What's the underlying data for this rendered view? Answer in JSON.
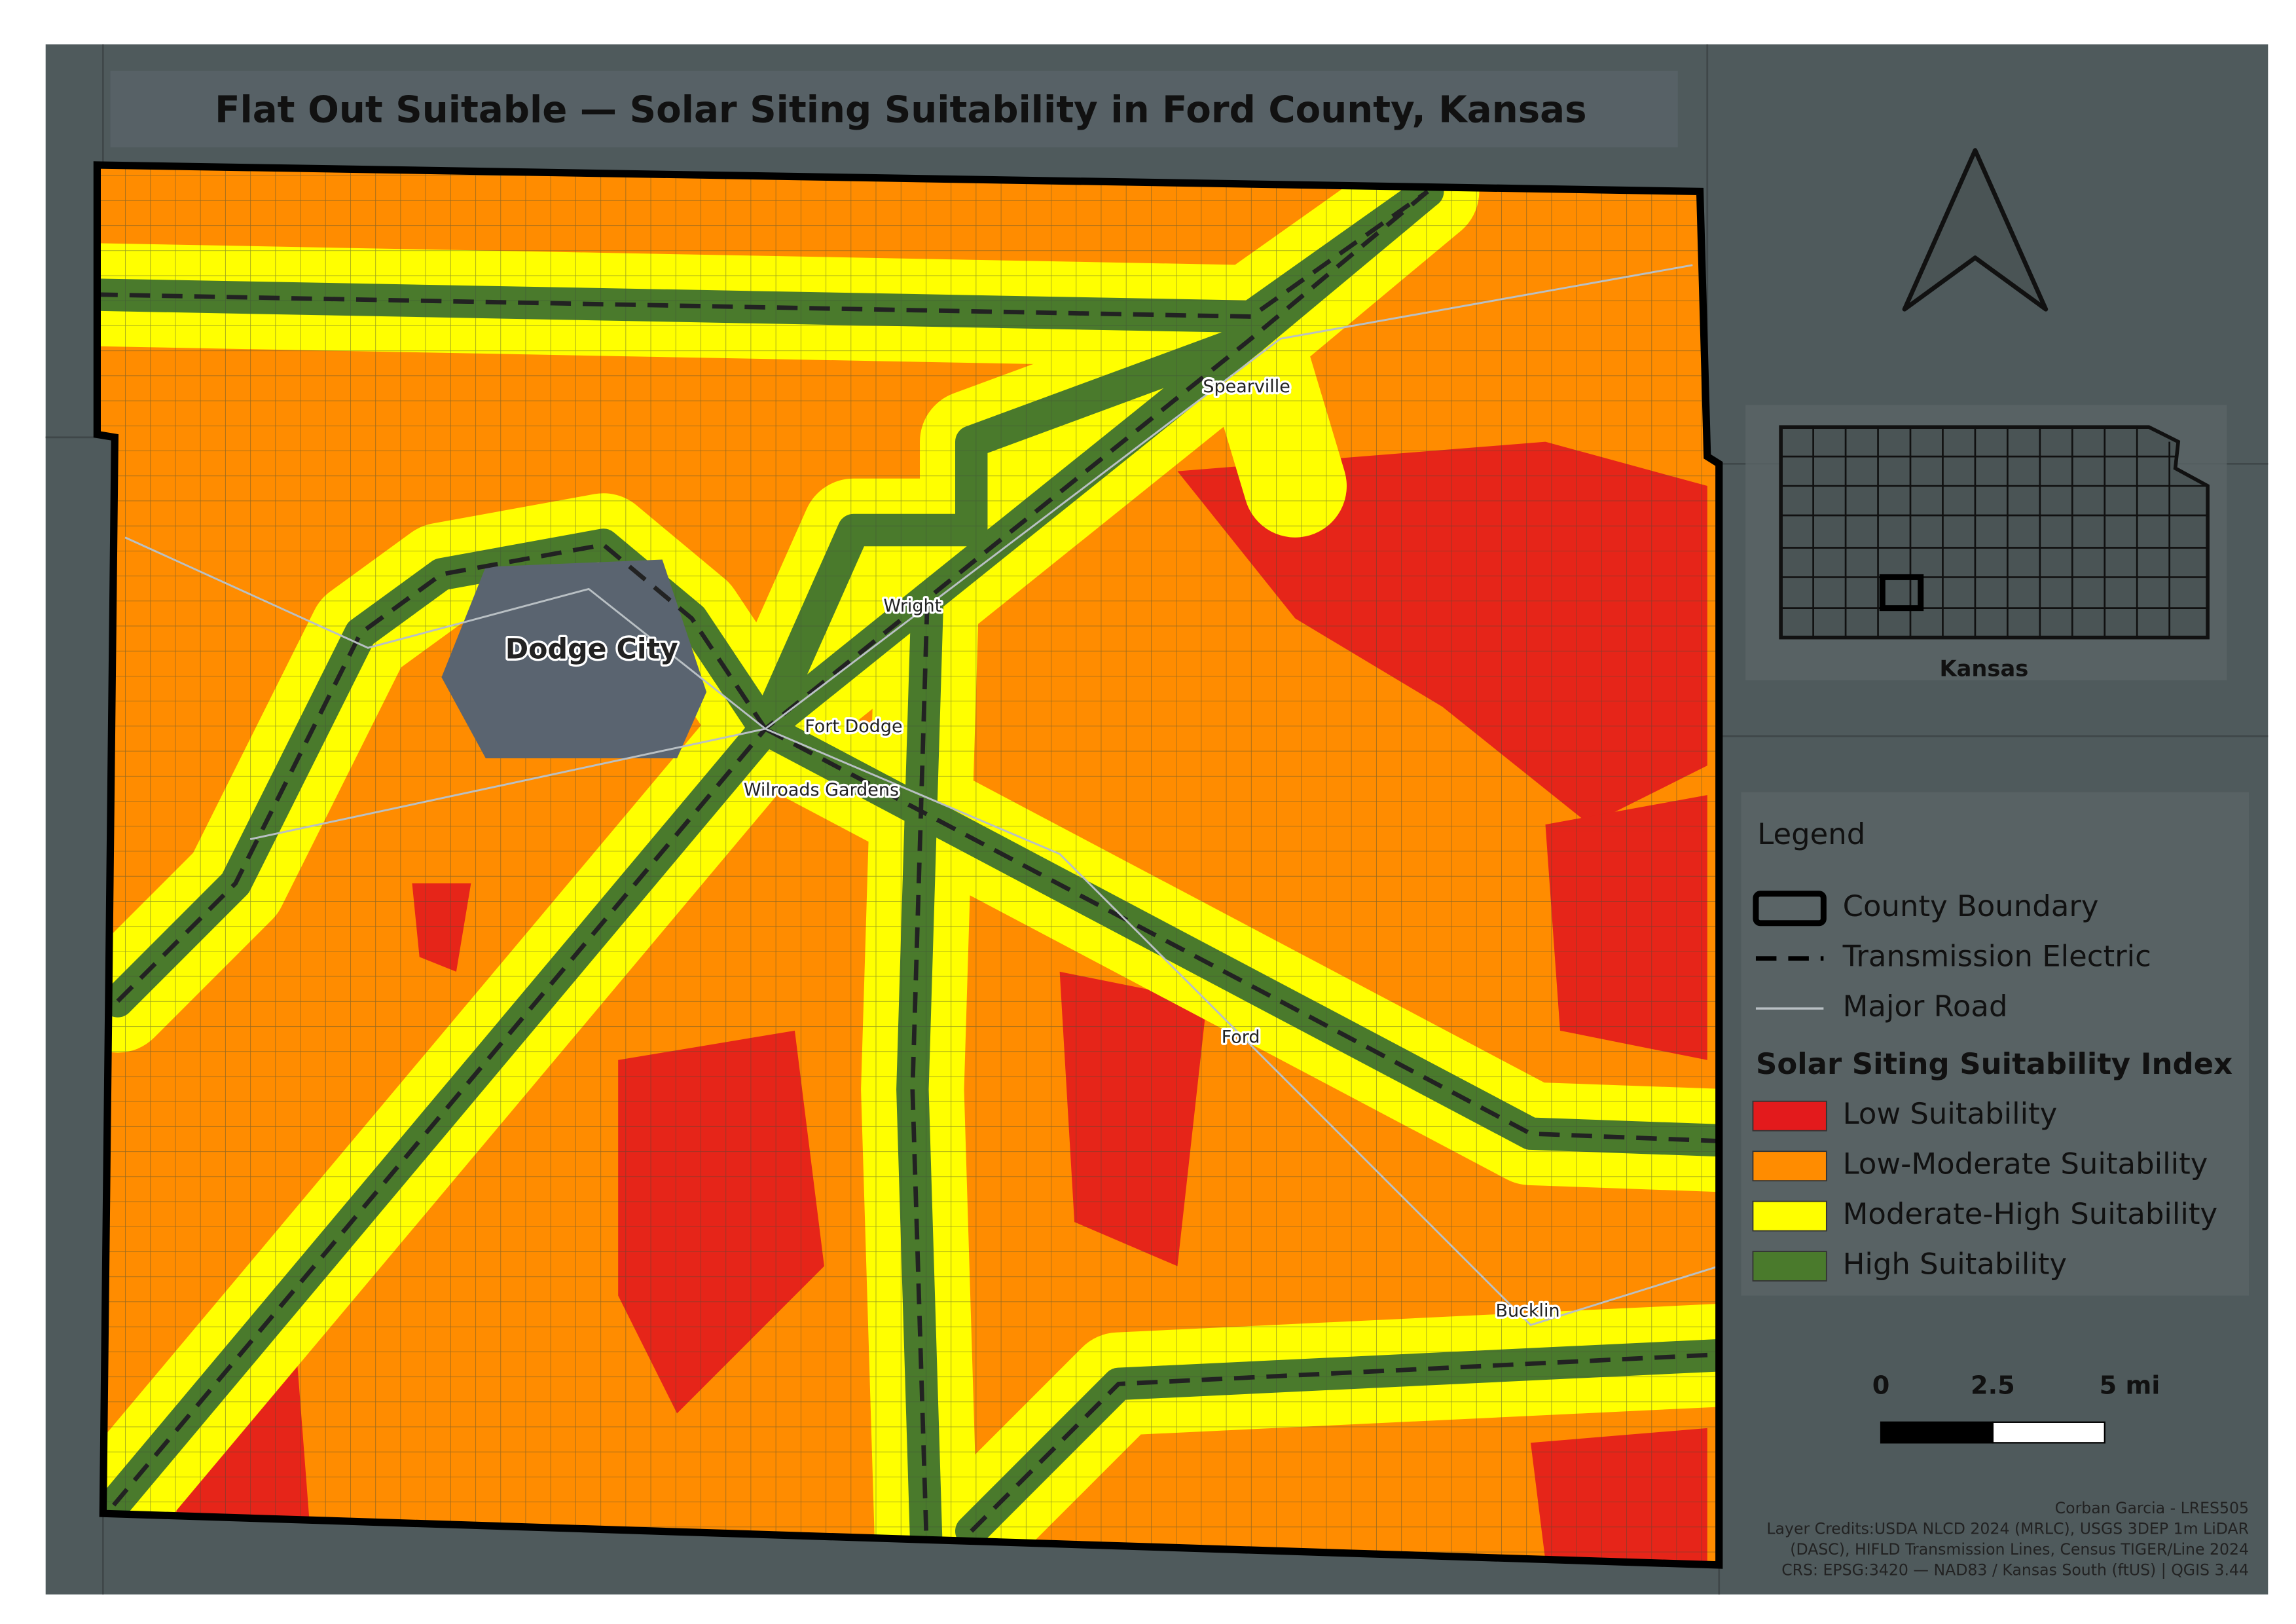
{
  "title": "Flat Out Suitable — Solar Siting Suitability in Ford County, Kansas",
  "places": [
    "Spearville",
    "Wright",
    "Dodge City",
    "Fort Dodge",
    "Wilroads Gardens",
    "Ford",
    "Bucklin"
  ],
  "inset": {
    "label": "Kansas"
  },
  "legend": {
    "title": "Legend",
    "items": [
      "County Boundary",
      "Transmission Electric",
      "Major Road"
    ],
    "index_title": "Solar Siting Suitability Index",
    "classes": [
      {
        "label": "Low Suitability",
        "color": "#e31a1c"
      },
      {
        "label": "Low-Moderate Suitability",
        "color": "#ff8c00"
      },
      {
        "label": "Moderate-High Suitability",
        "color": "#ffff00"
      },
      {
        "label": "High Suitability",
        "color": "#4a7a2c"
      }
    ]
  },
  "scale_bar": {
    "labels": [
      "0",
      "2.5",
      "5 mi"
    ]
  },
  "credits": [
    "Corban Garcia - LRES505",
    "Layer Credits:USDA NLCD 2024 (MRLC), USGS 3DEP 1m LiDAR",
    "(DASC), HIFLD Transmission Lines, Census TIGER/Line 2024",
    "CRS: EPSG:3420 — NAD83 / Kansas South (ftUS)  |  QGIS 3.44"
  ]
}
